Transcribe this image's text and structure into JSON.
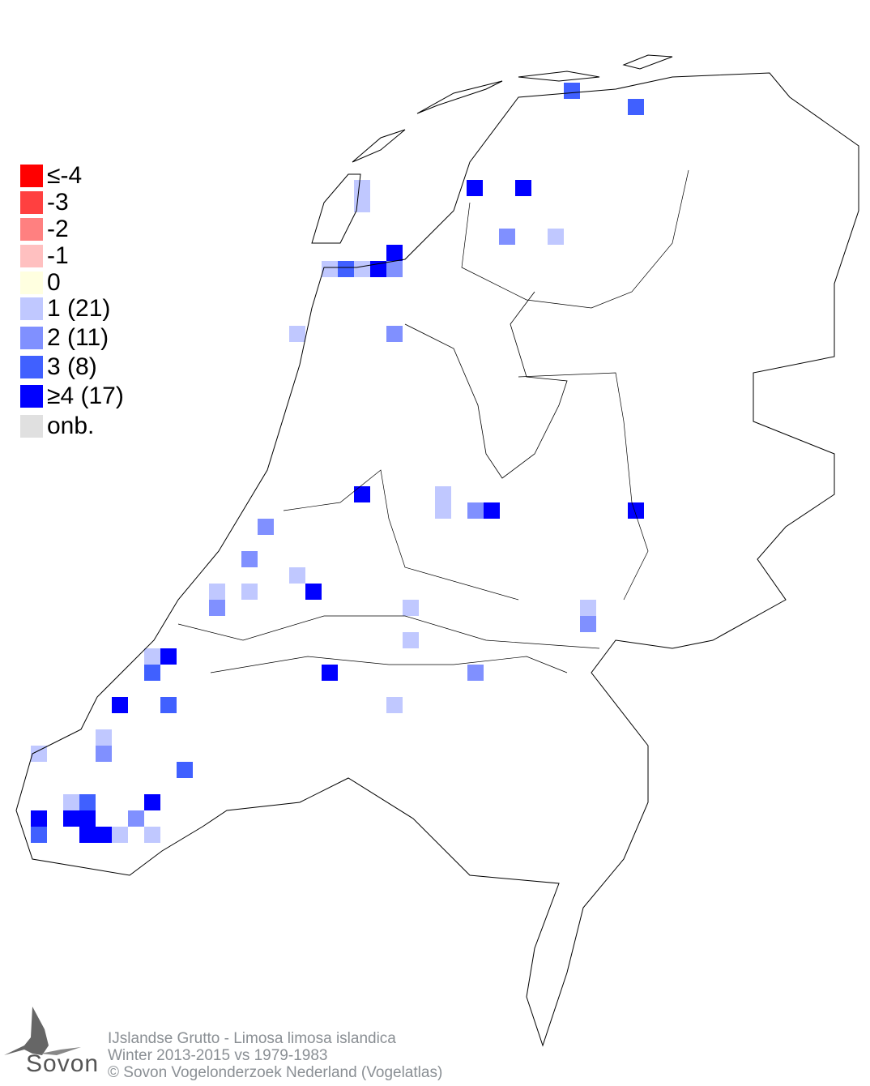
{
  "legend": [
    {
      "label": "≤-4",
      "color": "#ff0000"
    },
    {
      "label": "-3",
      "color": "#ff4040"
    },
    {
      "label": "-2",
      "color": "#ff8080"
    },
    {
      "label": "-1",
      "color": "#ffc0c0"
    },
    {
      "label": " 0",
      "color": "#ffffe0"
    },
    {
      "label": " 1 (21)",
      "color": "#c0c8ff"
    },
    {
      "label": " 2 (11)",
      "color": "#8090ff"
    },
    {
      "label": " 3 (8)",
      "color": "#4060ff"
    },
    {
      "label": "≥4 (17)",
      "color": "#0000ff"
    },
    {
      "label": "onb.",
      "color": "#e0e0e0"
    }
  ],
  "level_colors": {
    "1": "#c0c8ff",
    "2": "#8090ff",
    "3": "#4060ff",
    "4": "#0000ff"
  },
  "footer": {
    "line1": "IJslandse Grutto - Limosa limosa islandica",
    "line2": "Winter 2013-2015 vs 1979-1983",
    "line3": "© Sovon Vogelonderzoek Nederland (Vogelatlas)"
  },
  "logo": {
    "text": "Sovon"
  }
}
